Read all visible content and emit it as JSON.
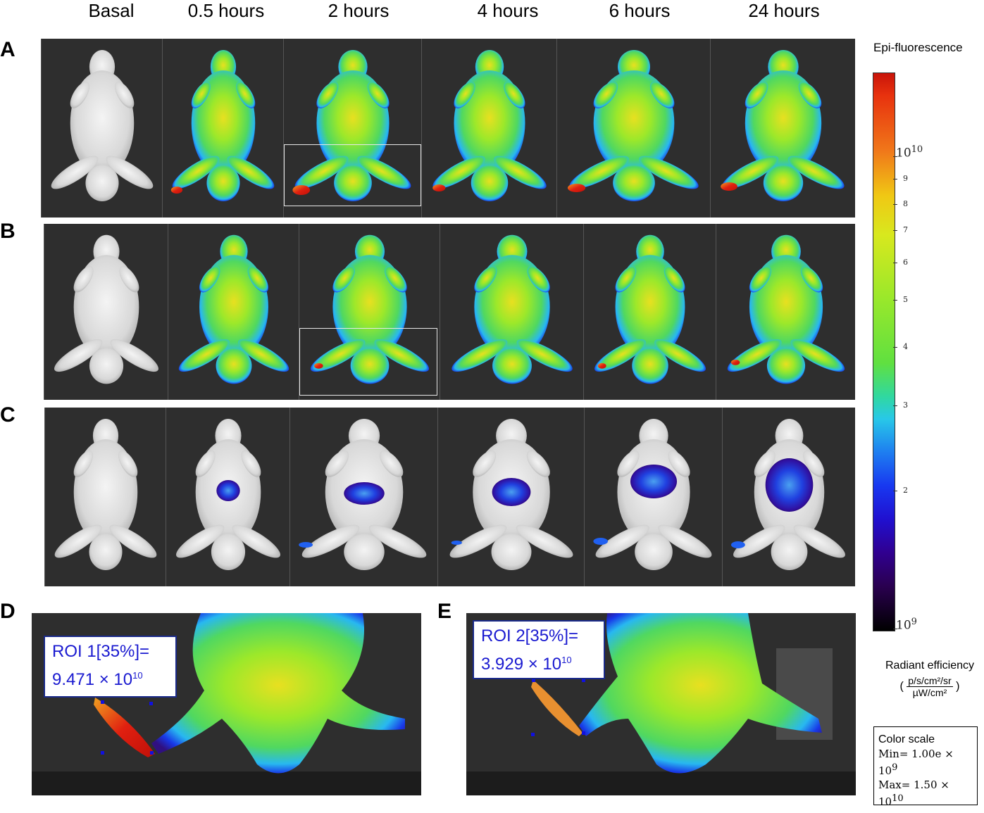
{
  "columns": [
    "Basal",
    "0.5 hours",
    "2 hours",
    "4 hours",
    "6 hours",
    "24 hours"
  ],
  "rows": [
    "A",
    "B",
    "C"
  ],
  "zoom_panels": {
    "D": {
      "label": "D",
      "roi_name": "ROI 1[35%]=",
      "roi_value": "9.471 × 10",
      "roi_exp": "10"
    },
    "E": {
      "label": "E",
      "roi_name": "ROI 2[35%]=",
      "roi_value": "3.929 × 10",
      "roi_exp": "10"
    }
  },
  "colorbar": {
    "title": "Epi-fluorescence",
    "top_label_base": "10",
    "top_label_exp": "10",
    "bottom_label_base": "10",
    "bottom_label_exp": "9",
    "minor_ticks": [
      "9",
      "8",
      "7",
      "6",
      "5",
      "4",
      "3",
      "2"
    ],
    "colors": [
      "#c8140a",
      "#f0c814",
      "#60e040",
      "#28c8e8",
      "#1838f0",
      "#2a0050",
      "#000000"
    ]
  },
  "radiant": {
    "title": "Radiant efficiency",
    "numerator": "p/s/cm²/sr",
    "denominator": "µW/cm²"
  },
  "color_scale": {
    "title": "Color scale",
    "min_text": "Min= 1.00e × 10",
    "min_exp": "9",
    "max_text": "Max= 1.50 × 10",
    "max_exp": "10"
  }
}
